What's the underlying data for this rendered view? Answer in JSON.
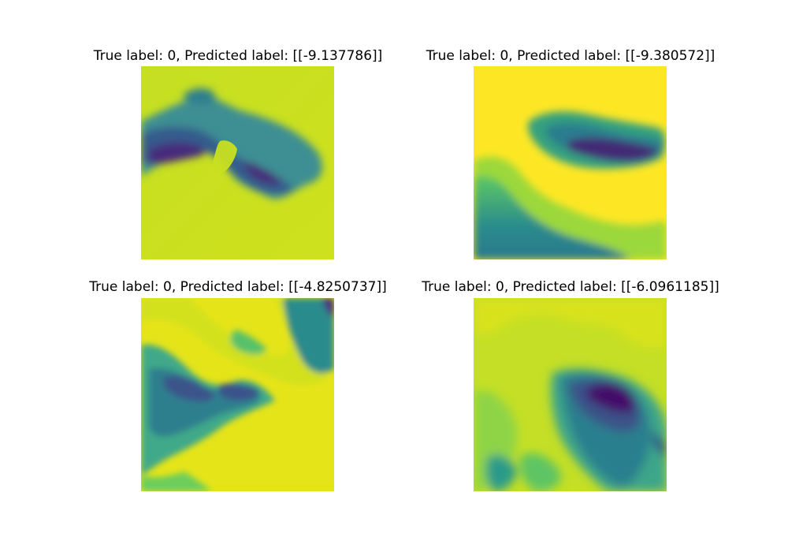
{
  "panels": [
    {
      "title": "True label: 0, Predicted label: [[-9.137786]]"
    },
    {
      "title": "True label: 0, Predicted label: [[-9.380572]]"
    },
    {
      "title": "True label: 0, Predicted label: [[-4.8250737]]"
    },
    {
      "title": "True label: 0, Predicted label: [[-6.0961185]]"
    }
  ],
  "colors": {
    "background": "#ffffff",
    "viridis_yellow": "#fde725",
    "viridis_yellow_green": "#c8e020",
    "viridis_green": "#5ec962",
    "viridis_teal": "#21918c",
    "viridis_blue": "#3b528b",
    "viridis_purple": "#440154"
  },
  "colormap": "viridis"
}
